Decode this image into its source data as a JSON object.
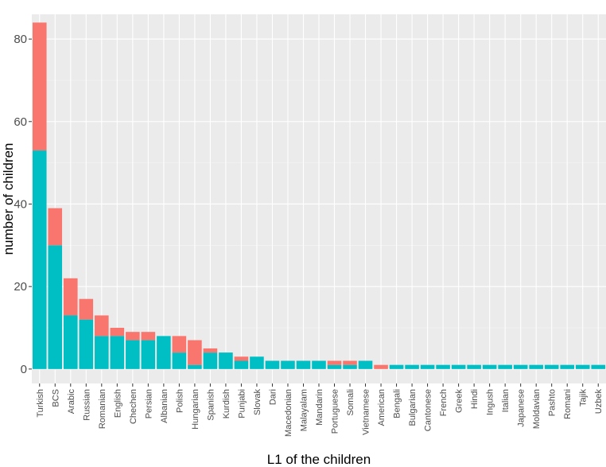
{
  "chart_data": {
    "type": "bar",
    "stacked": true,
    "xlabel": "L1 of the children",
    "ylabel": "number of children",
    "ylim": [
      -3.5,
      86
    ],
    "yticks": [
      0,
      20,
      40,
      60,
      80
    ],
    "grid": true,
    "colors": {
      "panel": "#EBEBEB",
      "grid_major": "#FFFFFF",
      "teal": "#00BFC4",
      "salmon": "#F8766D"
    },
    "categories": [
      "Turkish",
      "BCS",
      "Arabic",
      "Russian",
      "Romanian",
      "English",
      "Chechen",
      "Persian",
      "Albanian",
      "Polish",
      "Hungarian",
      "Spanish",
      "Kurdish",
      "Punjabi",
      "Slovak",
      "Dari",
      "Macedonian",
      "Malayalam",
      "Mandarin",
      "Portuguese",
      "Somali",
      "Vietnamese",
      "American",
      "Bengali",
      "Bulgarian",
      "Cantonese",
      "French",
      "Greek",
      "Hindi",
      "Ingush",
      "Italian",
      "Japanese",
      "Moldavian",
      "Pashto",
      "Romani",
      "Tajik",
      "Uzbek"
    ],
    "series": [
      {
        "color": "#00BFC4",
        "values": [
          53,
          30,
          13,
          12,
          8,
          8,
          7,
          7,
          8,
          4,
          1,
          4,
          4,
          2,
          3,
          2,
          2,
          2,
          2,
          1,
          1,
          2,
          0,
          1,
          1,
          1,
          1,
          1,
          1,
          1,
          1,
          1,
          1,
          1,
          1,
          1,
          1
        ]
      },
      {
        "color": "#F8766D",
        "values": [
          31,
          9,
          9,
          5,
          5,
          2,
          2,
          2,
          0,
          4,
          6,
          1,
          0,
          1,
          0,
          0,
          0,
          0,
          0,
          1,
          1,
          0,
          1,
          0,
          0,
          0,
          0,
          0,
          0,
          0,
          0,
          0,
          0,
          0,
          0,
          0,
          0
        ]
      }
    ]
  }
}
